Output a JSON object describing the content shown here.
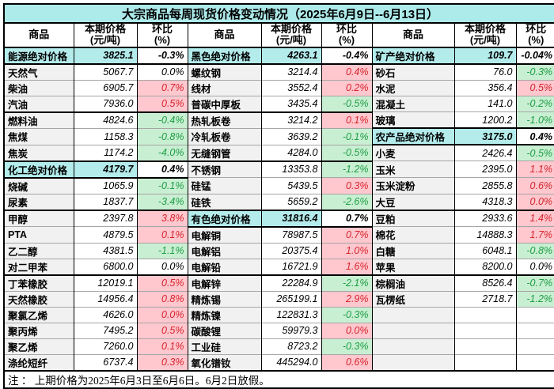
{
  "title": "大宗商品每周现货价格变动情况（2025年6月9日--6月13日）",
  "header": {
    "commodity": "商品",
    "price_line1": "本期价格",
    "price_line2": "(元/吨)",
    "change_line1": "环比",
    "change_line2": "(%)"
  },
  "footnote": "注 ： 上期价格为2025年6月3日至6月6日。6月2日放假。",
  "colors": {
    "title_bg": "#ADEAEA",
    "section_row_bg": "#B4ECEC",
    "name_cell_bg": "#F1F1F1",
    "increase_bg": "#FFC7CE",
    "increase_text": "#D7242C",
    "decrease_bg": "#C9EFD2",
    "decrease_text": "#1D9E45",
    "border": "#000000"
  },
  "table": {
    "columns": [
      {
        "rows": [
          {
            "name": "能源绝对价格",
            "price": "3825.1",
            "chg": "-0.3%",
            "abs": true
          },
          {
            "name": "天然气",
            "price": "5067.7",
            "chg": "0.0%",
            "style": "flat"
          },
          {
            "name": "柴油",
            "price": "6905.7",
            "chg": "0.7%",
            "style": "up"
          },
          {
            "name": "汽油",
            "price": "7936.0",
            "chg": "0.5%",
            "style": "up"
          },
          {
            "name": "燃料油",
            "price": "4824.6",
            "chg": "-0.4%",
            "style": "down",
            "sep": true
          },
          {
            "name": "焦煤",
            "price": "1158.3",
            "chg": "-0.8%",
            "style": "down"
          },
          {
            "name": "焦炭",
            "price": "1174.2",
            "chg": "-4.0%",
            "style": "down"
          },
          {
            "name": "化工绝对价格",
            "price": "4179.7",
            "chg": "0.4%",
            "abs": true
          },
          {
            "name": "烧碱",
            "price": "1065.9",
            "chg": "-0.1%",
            "style": "down"
          },
          {
            "name": "尿素",
            "price": "1837.7",
            "chg": "-3.4%",
            "style": "down"
          },
          {
            "name": "甲醇",
            "price": "2397.8",
            "chg": "3.8%",
            "style": "up",
            "sep": true
          },
          {
            "name": "PTA",
            "price": "4879.5",
            "chg": "0.1%",
            "style": "up"
          },
          {
            "name": "乙二醇",
            "price": "4381.5",
            "chg": "-1.1%",
            "style": "down"
          },
          {
            "name": "对二甲苯",
            "price": "6800.0",
            "chg": "0.0%",
            "style": "flat"
          },
          {
            "name": "丁苯橡胶",
            "price": "12019.1",
            "chg": "0.5%",
            "style": "up",
            "sep": true
          },
          {
            "name": "天然橡胶",
            "price": "14956.4",
            "chg": "0.8%",
            "style": "up"
          },
          {
            "name": "聚氯乙烯",
            "price": "4626.0",
            "chg": "0.0%",
            "style": "up"
          },
          {
            "name": "聚丙烯",
            "price": "7495.2",
            "chg": "0.5%",
            "style": "up"
          },
          {
            "name": "聚乙烯",
            "price": "7260.0",
            "chg": "0.1%",
            "style": "up"
          },
          {
            "name": "涤纶短纤",
            "price": "6737.4",
            "chg": "0.3%",
            "style": "up"
          }
        ]
      },
      {
        "rows": [
          {
            "name": "黑色绝对价格",
            "price": "4263.1",
            "chg": "-0.4%",
            "abs": true
          },
          {
            "name": "螺纹钢",
            "price": "3214.4",
            "chg": "0.4%",
            "style": "up"
          },
          {
            "name": "线材",
            "price": "3552.4",
            "chg": "0.2%",
            "style": "up"
          },
          {
            "name": "普碳中厚板",
            "price": "3435.4",
            "chg": "-0.5%",
            "style": "down"
          },
          {
            "name": "热轧板卷",
            "price": "3214.2",
            "chg": "0.1%",
            "style": "up",
            "sep": true
          },
          {
            "name": "冷轧板卷",
            "price": "3639.2",
            "chg": "-0.1%",
            "style": "down"
          },
          {
            "name": "无缝钢管",
            "price": "4284.0",
            "chg": "-0.5%",
            "style": "down"
          },
          {
            "name": "不锈钢",
            "price": "13353.8",
            "chg": "-1.2%",
            "style": "down",
            "sep": true
          },
          {
            "name": "硅锰",
            "price": "5439.5",
            "chg": "0.3%",
            "style": "up"
          },
          {
            "name": "硅铁",
            "price": "5659.2",
            "chg": "-2.6%",
            "style": "down"
          },
          {
            "name": "有色绝对价格",
            "price": "31816.4",
            "chg": "0.7%",
            "abs": true
          },
          {
            "name": "电解铜",
            "price": "78987.5",
            "chg": "0.7%",
            "style": "up"
          },
          {
            "name": "电解铝",
            "price": "20375.4",
            "chg": "1.0%",
            "style": "up"
          },
          {
            "name": "电解铅",
            "price": "16721.9",
            "chg": "1.6%",
            "style": "up"
          },
          {
            "name": "电解锌",
            "price": "22284.9",
            "chg": "-2.1%",
            "style": "down",
            "sep": true
          },
          {
            "name": "精炼锡",
            "price": "265199.1",
            "chg": "2.9%",
            "style": "up"
          },
          {
            "name": "精炼镍",
            "price": "122831.3",
            "chg": "-0.3%",
            "style": "down"
          },
          {
            "name": "碳酸锂",
            "price": "59979.3",
            "chg": "0.0%",
            "style": "up"
          },
          {
            "name": "工业硅",
            "price": "8723.2",
            "chg": "-0.3%",
            "style": "down"
          },
          {
            "name": "氧化镨钕",
            "price": "445294.0",
            "chg": "0.6%",
            "style": "up"
          }
        ]
      },
      {
        "rows": [
          {
            "name": "矿产绝对价格",
            "price": "109.7",
            "chg": "-0.04%",
            "abs": true
          },
          {
            "name": "砂石",
            "price": "76.0",
            "chg": "-0.3%",
            "style": "down"
          },
          {
            "name": "水泥",
            "price": "356.4",
            "chg": "0.5%",
            "style": "up"
          },
          {
            "name": "混凝土",
            "price": "141.0",
            "chg": "-0.2%",
            "style": "down"
          },
          {
            "name": "玻璃",
            "price": "1200.2",
            "chg": "-1.0%",
            "style": "down"
          },
          {
            "name": "农产品绝对价格",
            "price": "3175.0",
            "chg": "0.4%",
            "abs": true
          },
          {
            "name": "小麦",
            "price": "2426.4",
            "chg": "-0.5%",
            "style": "down"
          },
          {
            "name": "玉米",
            "price": "2395.0",
            "chg": "1.1%",
            "style": "up"
          },
          {
            "name": "玉米淀粉",
            "price": "2855.8",
            "chg": "0.6%",
            "style": "up"
          },
          {
            "name": "大豆",
            "price": "4318.3",
            "chg": "0.0%",
            "style": "up"
          },
          {
            "name": "豆粕",
            "price": "2933.6",
            "chg": "1.4%",
            "style": "up",
            "sep": true
          },
          {
            "name": "棉花",
            "price": "14888.3",
            "chg": "1.7%",
            "style": "up"
          },
          {
            "name": "白糖",
            "price": "6048.1",
            "chg": "-0.8%",
            "style": "down"
          },
          {
            "name": "苹果",
            "price": "8200.0",
            "chg": "0.0%",
            "style": "flat"
          },
          {
            "name": "棕榈油",
            "price": "8526.4",
            "chg": "-0.7%",
            "style": "down",
            "sep": true
          },
          {
            "name": "瓦楞纸",
            "price": "2718.7",
            "chg": "-1.2%",
            "style": "down"
          },
          {
            "name": "",
            "price": "",
            "chg": "",
            "style": "flat",
            "empty": true
          },
          {
            "name": "",
            "price": "",
            "chg": "",
            "style": "flat",
            "empty": true
          },
          {
            "name": "",
            "price": "",
            "chg": "",
            "style": "flat",
            "empty": true
          },
          {
            "name": "",
            "price": "",
            "chg": "",
            "style": "flat",
            "empty": true
          }
        ]
      }
    ]
  }
}
